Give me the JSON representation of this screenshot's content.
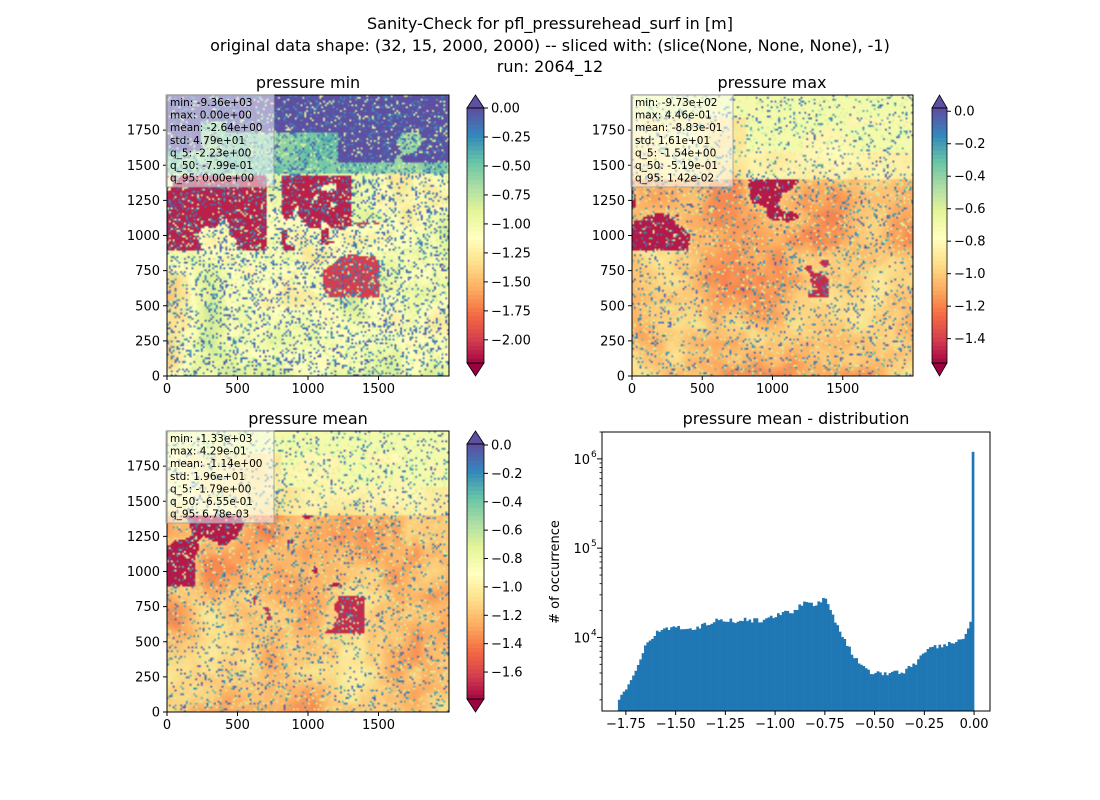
{
  "figure": {
    "suptitle_lines": [
      "Sanity-Check for pfl_pressurehead_surf in [m]",
      "original data shape: (32, 15, 2000, 2000) -- sliced with: (slice(None, None, None), -1)",
      "run: 2064_12"
    ]
  },
  "colors": {
    "spectral": [
      "#9e0142",
      "#d53e4f",
      "#f46d43",
      "#fdae61",
      "#fee08b",
      "#ffffbf",
      "#e6f598",
      "#abdda4",
      "#66c2a5",
      "#3288bd",
      "#5e4fa2"
    ],
    "hist_bar": "#1f77b4"
  },
  "chart_data": [
    {
      "id": "min",
      "type": "heatmap",
      "title": "pressure min",
      "xlim": [
        0,
        2000
      ],
      "ylim": [
        0,
        2000
      ],
      "xticks": [
        "0",
        "500",
        "1000",
        "1500"
      ],
      "yticks": [
        "0",
        "250",
        "500",
        "750",
        "1000",
        "1250",
        "1500",
        "1750"
      ],
      "colorbar": {
        "range": [
          -2.2,
          0.0
        ],
        "ticks": [
          "0.00",
          "-0.25",
          "-0.50",
          "-0.75",
          "-1.00",
          "-1.25",
          "-1.50",
          "-1.75",
          "-2.00"
        ],
        "extend": "both"
      },
      "stats": [
        "min: -9.36e+03",
        "max: 0.00e+00",
        "mean: -2.64e+00",
        "std: 4.79e+01",
        "q_5: -2.23e+00",
        "q_50: -7.99e-01",
        "q_95: 0.00e+00"
      ]
    },
    {
      "id": "max",
      "type": "heatmap",
      "title": "pressure max",
      "xlim": [
        0,
        2000
      ],
      "ylim": [
        0,
        2000
      ],
      "xticks": [
        "0",
        "500",
        "1000",
        "1500"
      ],
      "yticks": [
        "0",
        "250",
        "500",
        "750",
        "1000",
        "1250",
        "1500",
        "1750"
      ],
      "colorbar": {
        "range": [
          -1.55,
          0.02
        ],
        "ticks": [
          "0.0",
          "-0.2",
          "-0.4",
          "-0.6",
          "-0.8",
          "-1.0",
          "-1.2",
          "-1.4"
        ],
        "extend": "both"
      },
      "stats": [
        "min: -9.73e+02",
        "max: 4.46e-01",
        "mean: -8.83e-01",
        "std: 1.61e+01",
        "q_5: -1.54e+00",
        "q_50: -5.19e-01",
        "q_95: 1.42e-02"
      ]
    },
    {
      "id": "mean",
      "type": "heatmap",
      "title": "pressure mean",
      "xlim": [
        0,
        2000
      ],
      "ylim": [
        0,
        2000
      ],
      "xticks": [
        "0",
        "500",
        "1000",
        "1500"
      ],
      "yticks": [
        "0",
        "250",
        "500",
        "750",
        "1000",
        "1250",
        "1500",
        "1750"
      ],
      "colorbar": {
        "range": [
          -1.79,
          0.007
        ],
        "ticks": [
          "0.0",
          "-0.2",
          "-0.4",
          "-0.6",
          "-0.8",
          "-1.0",
          "-1.2",
          "-1.4",
          "-1.6"
        ],
        "extend": "both"
      },
      "stats": [
        "min: -1.33e+03",
        "max: 4.29e-01",
        "mean: -1.14e+00",
        "std: 1.96e+01",
        "q_5: -1.79e+00",
        "q_50: -6.55e-01",
        "q_95: 6.78e-03"
      ]
    },
    {
      "id": "dist",
      "type": "bar",
      "title": "pressure mean - distribution",
      "ylabel": "# of occurrence",
      "yscale": "log",
      "xlim": [
        -1.87,
        0.08
      ],
      "ylim": [
        1500,
        2000000
      ],
      "xticks": [
        "−1.75",
        "−1.50",
        "−1.25",
        "−1.00",
        "−0.75",
        "−0.50",
        "−0.25",
        "0.00"
      ],
      "yticks": [
        "10",
        "10",
        "10"
      ],
      "ytick_exponents": [
        "4",
        "5",
        "6"
      ],
      "bins": {
        "start": -1.79,
        "end": 0.0,
        "count": 150
      },
      "profile": [
        [
          -1.79,
          2000
        ],
        [
          -1.75,
          2600
        ],
        [
          -1.7,
          4500
        ],
        [
          -1.65,
          8000
        ],
        [
          -1.6,
          11000
        ],
        [
          -1.55,
          12800
        ],
        [
          -1.5,
          13000
        ],
        [
          -1.45,
          12800
        ],
        [
          -1.4,
          12500
        ],
        [
          -1.35,
          14000
        ],
        [
          -1.3,
          15800
        ],
        [
          -1.25,
          15600
        ],
        [
          -1.2,
          15300
        ],
        [
          -1.15,
          15800
        ],
        [
          -1.1,
          15500
        ],
        [
          -1.05,
          15700
        ],
        [
          -1.0,
          17500
        ],
        [
          -0.95,
          19000
        ],
        [
          -0.9,
          20000
        ],
        [
          -0.85,
          25000
        ],
        [
          -0.8,
          22500
        ],
        [
          -0.75,
          28500
        ],
        [
          -0.72,
          20000
        ],
        [
          -0.68,
          12500
        ],
        [
          -0.62,
          7000
        ],
        [
          -0.57,
          5000
        ],
        [
          -0.52,
          4000
        ],
        [
          -0.45,
          3900
        ],
        [
          -0.35,
          4200
        ],
        [
          -0.3,
          5000
        ],
        [
          -0.25,
          6800
        ],
        [
          -0.2,
          7800
        ],
        [
          -0.15,
          8200
        ],
        [
          -0.1,
          8800
        ],
        [
          -0.05,
          10000
        ],
        [
          -0.02,
          13000
        ],
        [
          -0.012,
          18000
        ],
        [
          -0.006,
          33000
        ],
        [
          0.0,
          1200000
        ]
      ]
    }
  ]
}
